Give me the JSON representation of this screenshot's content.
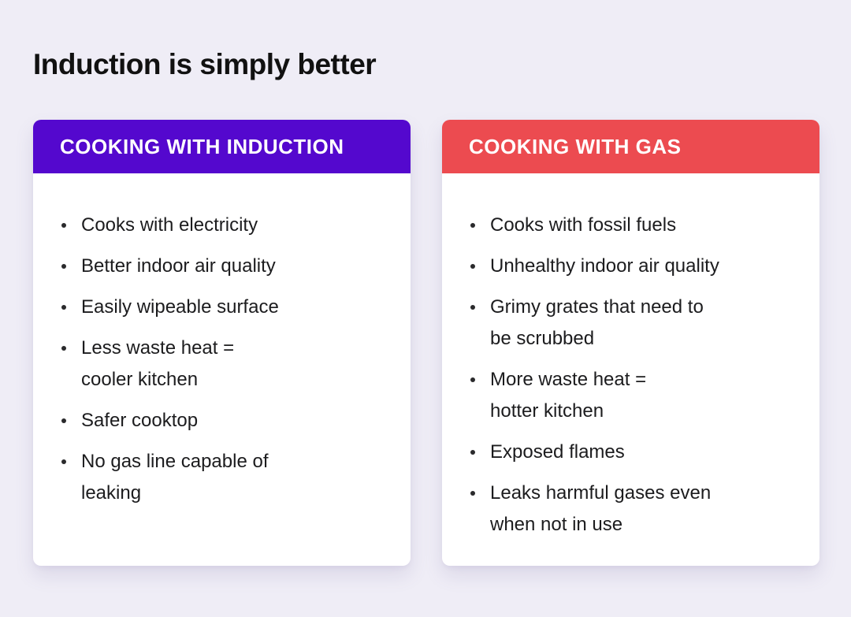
{
  "page": {
    "title": "Induction is simply better",
    "background_color": "#EFEDF6"
  },
  "colors": {
    "induction_header": "#5408CE",
    "gas_header": "#EC4B50",
    "card_background": "#FFFFFF",
    "header_text": "#FFFFFF",
    "body_text": "#1C1C1E"
  },
  "cards": [
    {
      "header": "COOKING WITH INDUCTION",
      "header_color": "#5408CE",
      "items": [
        "Cooks with electricity",
        "Better indoor air quality",
        "Easily wipeable surface",
        "Less waste heat =\ncooler kitchen",
        "Safer cooktop",
        "No gas line capable of\nleaking"
      ]
    },
    {
      "header": "COOKING WITH GAS",
      "header_color": "#EC4B50",
      "items": [
        "Cooks with fossil fuels",
        "Unhealthy indoor air quality",
        "Grimy grates that need to\nbe scrubbed",
        "More waste heat =\nhotter kitchen",
        "Exposed flames",
        "Leaks harmful gases even\nwhen not in use"
      ]
    }
  ]
}
